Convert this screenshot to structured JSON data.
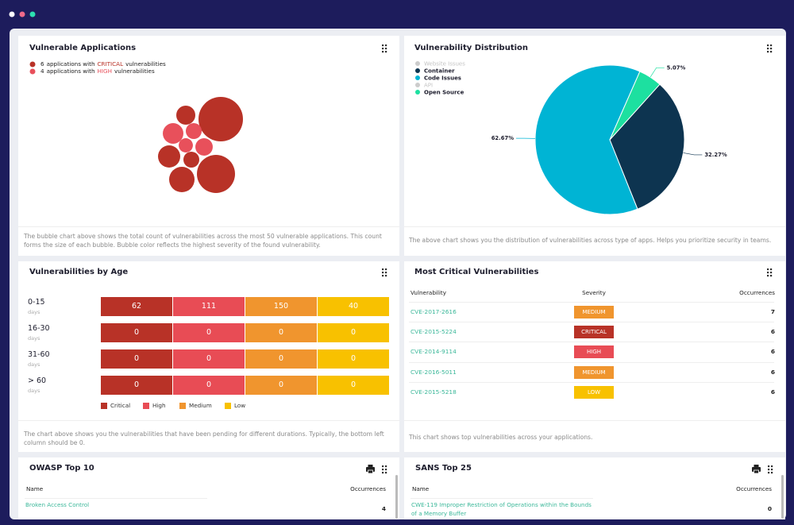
{
  "vulnerable_applications": {
    "title": "Vulnerable Applications",
    "legend": [
      {
        "count": 6,
        "before": "applications with",
        "after": "vulnerabilities"
      },
      {
        "count": 4,
        "before": "applications with",
        "after": "vulnerabilities"
      }
    ],
    "chart_data": {
      "type": "bubble",
      "series": [
        {
          "name": "CRITICAL",
          "color": "#b83227",
          "values": [
            196,
            144,
            36,
            49,
            64,
            25
          ]
        },
        {
          "name": "HIGH",
          "color": "#e8505b",
          "values": [
            42,
            25,
            20,
            30
          ]
        }
      ]
    },
    "description": "The bubble chart above shows the total count of vulnerabilities across the most 50 vulnerable applications. This count forms the size of each bubble. Bubble color reflects the highest severity of the found vulnerability."
  },
  "vulnerability_distribution": {
    "title": "Vulnerability Distribution",
    "chart_data": {
      "type": "pie",
      "categories": [
        "Website Issues",
        "Container",
        "Code Issues",
        "API",
        "Open Source"
      ],
      "values": [
        null,
        32.27,
        62.67,
        null,
        5.07
      ],
      "value_labels": [
        null,
        "32.27%",
        "62.67%",
        null,
        "5.07%"
      ],
      "colors": [
        "#cccccc",
        "#0d3450",
        "#00b4d4",
        "#cccccc",
        "#1de0a0"
      ],
      "hidden": [
        true,
        false,
        false,
        true,
        false
      ]
    },
    "description": "The above chart shows you the distribution of vulnerabilities across type of apps. Helps you prioritize security in teams."
  },
  "vulnerabilities_by_age": {
    "title": "Vulnerabilities by Age",
    "columns": [
      {
        "name": "Critical",
        "color": "#b83227"
      },
      {
        "name": "High",
        "color": "#e84c55"
      },
      {
        "name": "Medium",
        "color": "#f0952e"
      },
      {
        "name": "Low",
        "color": "#f8c100"
      }
    ],
    "rows": [
      {
        "label": "0-15",
        "unit": "days",
        "values": [
          62,
          111,
          150,
          40
        ]
      },
      {
        "label": "16-30",
        "unit": "days",
        "values": [
          0,
          0,
          0,
          0
        ]
      },
      {
        "label": "31-60",
        "unit": "days",
        "values": [
          0,
          0,
          0,
          0
        ]
      },
      {
        "label": "> 60",
        "unit": "days",
        "values": [
          0,
          0,
          0,
          0
        ]
      }
    ],
    "description": "The chart above shows you the vulnerabilities that have been pending for different durations. Typically, the bottom left column should be 0."
  },
  "most_critical": {
    "title": "Most Critical Vulnerabilities",
    "columns": [
      "Vulnerability",
      "Severity",
      "Occurrences"
    ],
    "severity_colors": {
      "MEDIUM": "#f0952e",
      "CRITICAL": "#b83227",
      "HIGH": "#e84c55",
      "LOW": "#f8c100"
    },
    "rows": [
      [
        "CVE-2017-2616",
        "MEDIUM",
        7
      ],
      [
        "CVE-2015-5224",
        "CRITICAL",
        6
      ],
      [
        "CVE-2014-9114",
        "HIGH",
        6
      ],
      [
        "CVE-2016-5011",
        "MEDIUM",
        6
      ],
      [
        "CVE-2015-5218",
        "LOW",
        6
      ]
    ],
    "description": "This chart shows top vulnerabilities across your applications."
  },
  "owasp": {
    "title": "OWASP Top 10",
    "columns": [
      "Name",
      "Occurrences"
    ],
    "rows": [
      [
        "Broken Access Control",
        4
      ]
    ]
  },
  "sans": {
    "title": "SANS Top 25",
    "columns": [
      "Name",
      "Occurrences"
    ],
    "rows": [
      [
        "CWE-119 Improper Restriction of Operations within the Bounds of a Memory Buffer",
        0
      ]
    ]
  }
}
